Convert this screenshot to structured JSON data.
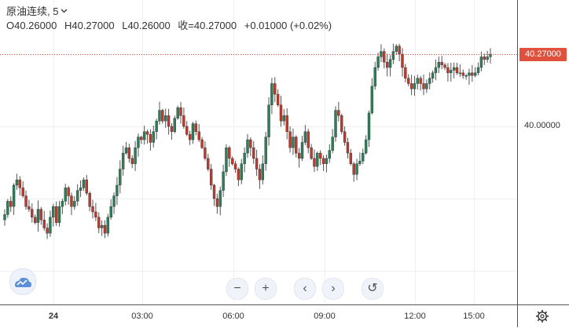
{
  "legend": {
    "symbol": "原油连续",
    "interval": "5",
    "open": "O40.26000",
    "high": "H40.27000",
    "low": "L40.26000",
    "close": "收=40.27000",
    "change": "+0.01000 (+0.02%)"
  },
  "price_axis": {
    "current_price": "40.27000",
    "labels": [
      "40.00000"
    ]
  },
  "time_axis": {
    "labels": [
      "24",
      "03:00",
      "06:00",
      "09:00",
      "12:00",
      "15:00"
    ]
  },
  "controls": {
    "zoom_out": "−",
    "zoom_in": "+",
    "scroll_left": "‹",
    "scroll_right": "›",
    "reset": "↺"
  },
  "icons": {
    "logo": "tradingview-cloud-icon",
    "settings": "gear-icon"
  },
  "colors": {
    "up": "#4a4a4a",
    "down": "#c0392b",
    "up_body": "#2e7d5b",
    "price_line": "#e0513d",
    "grid": "#eef0f3"
  },
  "chart_data": {
    "type": "candlestick",
    "symbol": "原油连续",
    "interval": "5",
    "y_ticks": [
      40.0
    ],
    "current_price": 40.27,
    "close": [
      39.67,
      39.72,
      39.7,
      39.78,
      39.8,
      39.77,
      39.74,
      39.7,
      39.69,
      39.66,
      39.64,
      39.69,
      39.65,
      39.62,
      39.6,
      39.66,
      39.7,
      39.64,
      39.7,
      39.72,
      39.77,
      39.74,
      39.7,
      39.72,
      39.76,
      39.77,
      39.8,
      39.75,
      39.7,
      39.68,
      39.66,
      39.62,
      39.63,
      39.6,
      39.66,
      39.7,
      39.74,
      39.78,
      39.84,
      39.9,
      39.92,
      39.88,
      39.86,
      39.92,
      39.96,
      39.95,
      39.98,
      39.97,
      39.94,
      39.98,
      40.02,
      40.06,
      40.02,
      40.04,
      40.0,
      39.98,
      40.03,
      40.07,
      40.04,
      40.0,
      39.97,
      39.95,
      40.01,
      39.98,
      39.95,
      39.92,
      39.88,
      39.84,
      39.78,
      39.73,
      39.7,
      39.76,
      39.83,
      39.92,
      39.88,
      39.86,
      39.84,
      39.8,
      39.86,
      39.9,
      39.95,
      39.92,
      39.88,
      39.84,
      39.8,
      39.86,
      39.96,
      40.08,
      40.16,
      40.12,
      40.08,
      40.02,
      40.04,
      39.98,
      39.92,
      39.96,
      39.9,
      39.88,
      39.94,
      39.98,
      39.92,
      39.88,
      39.85,
      39.9,
      39.88,
      39.86,
      39.88,
      39.91,
      39.96,
      40.06,
      40.04,
      39.98,
      39.94,
      39.9,
      39.86,
      39.82,
      39.86,
      39.87,
      39.9,
      39.95,
      40.05,
      40.15,
      40.22,
      40.26,
      40.28,
      40.24,
      40.22,
      40.25,
      40.28,
      40.3,
      40.27,
      40.22,
      40.18,
      40.16,
      40.14,
      40.16,
      40.18,
      40.16,
      40.14,
      40.16,
      40.18,
      40.2,
      40.22,
      40.24,
      40.23,
      40.22,
      40.2,
      40.21,
      40.22,
      40.2,
      40.2,
      40.19,
      40.19,
      40.2,
      40.19,
      40.2,
      40.22,
      40.26,
      40.25,
      40.26,
      40.27
    ]
  }
}
